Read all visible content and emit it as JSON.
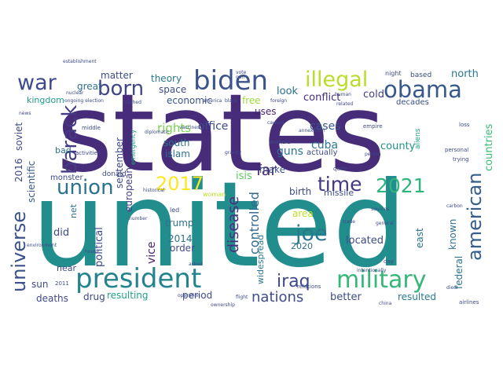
{
  "words": [
    {
      "text": "states",
      "color": "#472c7a"
    },
    {
      "text": "united",
      "color": "#218e8d"
    },
    {
      "text": "president",
      "color": "#25838e"
    },
    {
      "text": "military",
      "color": "#35b779"
    },
    {
      "text": "biden",
      "color": "#3b528b"
    },
    {
      "text": "illegal",
      "color": "#b8de29"
    },
    {
      "text": "obama",
      "color": "#38588c"
    },
    {
      "text": "war",
      "color": "#3e4a89"
    },
    {
      "text": "born",
      "color": "#404688"
    },
    {
      "text": "barack",
      "color": "#443b84"
    },
    {
      "text": "union",
      "color": "#2c728e"
    },
    {
      "text": "2017",
      "color": "#fde725"
    },
    {
      "text": "time",
      "color": "#453781"
    },
    {
      "text": "2021",
      "color": "#2fb47c"
    },
    {
      "text": "american",
      "color": "#355e8d"
    },
    {
      "text": "universe",
      "color": "#3b528b"
    },
    {
      "text": "joe",
      "color": "#2a788e"
    },
    {
      "text": "iraq",
      "color": "#3e4989"
    },
    {
      "text": "nations",
      "color": "#3e4c8a"
    },
    {
      "text": "far",
      "color": "#482878"
    },
    {
      "text": "disease",
      "color": "#46327e"
    },
    {
      "text": "controlled",
      "color": "#31688e"
    },
    {
      "text": "isis",
      "color": "#5ec962"
    },
    {
      "text": "rights",
      "color": "#7ad151"
    },
    {
      "text": "office",
      "color": "#3e4a89"
    },
    {
      "text": "cases",
      "color": "#39568c"
    },
    {
      "text": "cuba",
      "color": "#2a788e"
    },
    {
      "text": "guns",
      "color": "#2c738e"
    },
    {
      "text": "county",
      "color": "#21918c"
    },
    {
      "text": "countries",
      "color": "#3bbb75"
    },
    {
      "text": "conflict",
      "color": "#46307e"
    },
    {
      "text": "cold",
      "color": "#433e85"
    },
    {
      "text": "north",
      "color": "#297a8e"
    },
    {
      "text": "decades",
      "color": "#3b528b"
    },
    {
      "text": "based",
      "color": "#3e4a89"
    },
    {
      "text": "look",
      "color": "#2d708e"
    },
    {
      "text": "uses",
      "color": "#482173"
    },
    {
      "text": "free",
      "color": "#a0da39"
    },
    {
      "text": "economic",
      "color": "#3a548c"
    },
    {
      "text": "theory",
      "color": "#2a788e"
    },
    {
      "text": "space",
      "color": "#3e4a89"
    },
    {
      "text": "great",
      "color": "#2c728e"
    },
    {
      "text": "matter",
      "color": "#3e4a89"
    },
    {
      "text": "kingdom",
      "color": "#1f9e89"
    },
    {
      "text": "south",
      "color": "#2c728e"
    },
    {
      "text": "islam",
      "color": "#2c728e"
    },
    {
      "text": "september",
      "color": "#3e4a89"
    },
    {
      "text": "european",
      "color": "#433e85"
    },
    {
      "text": "scientific",
      "color": "#38598c"
    },
    {
      "text": "2016",
      "color": "#3e4989"
    },
    {
      "text": "soviet",
      "color": "#3e4989"
    },
    {
      "text": "bad",
      "color": "#2d708e"
    },
    {
      "text": "make",
      "color": "#3b528b"
    },
    {
      "text": "birth",
      "color": "#3e4a89"
    },
    {
      "text": "missile",
      "color": "#3e4c8a"
    },
    {
      "text": "vice",
      "color": "#482475"
    },
    {
      "text": "trump",
      "color": "#2c728e"
    },
    {
      "text": "2014",
      "color": "#2c728e"
    },
    {
      "text": "order",
      "color": "#3e4989"
    },
    {
      "text": "political",
      "color": "#3e4989"
    },
    {
      "text": "did",
      "color": "#3e4a89"
    },
    {
      "text": "near",
      "color": "#3e4a89"
    },
    {
      "text": "net",
      "color": "#2c728e"
    },
    {
      "text": "sun",
      "color": "#3e4a89"
    },
    {
      "text": "deaths",
      "color": "#3e4a89"
    },
    {
      "text": "drug",
      "color": "#3e4a89"
    },
    {
      "text": "resulting",
      "color": "#20a386"
    },
    {
      "text": "period",
      "color": "#3e4a89"
    },
    {
      "text": "better",
      "color": "#3e4a89"
    },
    {
      "text": "resulted",
      "color": "#2a788e"
    },
    {
      "text": "located",
      "color": "#3e4a89"
    },
    {
      "text": "widespread",
      "color": "#2a788e"
    },
    {
      "text": "area",
      "color": "#bddf26"
    },
    {
      "text": "2020",
      "color": "#2c728e"
    },
    {
      "text": "east",
      "color": "#2c728e"
    },
    {
      "text": "known",
      "color": "#2c728e"
    },
    {
      "text": "federal",
      "color": "#2c728e"
    },
    {
      "text": "led",
      "color": "#3e4a89"
    },
    {
      "text": "monster",
      "color": "#3e4a89"
    },
    {
      "text": "donald",
      "color": "#3e4a89"
    },
    {
      "text": "actually",
      "color": "#3e4a89"
    },
    {
      "text": "aliens",
      "color": "#20a386"
    },
    {
      "text": "woman",
      "color": "#bddf26"
    },
    {
      "text": "relations",
      "color": "#3e4a89"
    },
    {
      "text": "2011",
      "color": "#3e4a89"
    },
    {
      "text": "workers",
      "color": "#3e4a89"
    },
    {
      "text": "emergency",
      "color": "#20a386"
    },
    {
      "text": "middle",
      "color": "#3e4a89"
    },
    {
      "text": "activities",
      "color": "#3e4a89"
    },
    {
      "text": "empire",
      "color": "#3e4a89"
    },
    {
      "text": "personal",
      "color": "#3e4a89"
    },
    {
      "text": "trying",
      "color": "#3e4a89"
    },
    {
      "text": "quite",
      "color": "#3e4a89"
    },
    {
      "text": "loss",
      "color": "#3e4a89"
    },
    {
      "text": "night",
      "color": "#3e4a89"
    },
    {
      "text": "establishment",
      "color": "#3e4a89"
    },
    {
      "text": "nuclear",
      "color": "#3e4a89"
    },
    {
      "text": "ongoing election",
      "color": "#3e4a89"
    },
    {
      "text": "crashed",
      "color": "#3e4a89"
    },
    {
      "text": "black",
      "color": "#3e4a89"
    },
    {
      "text": "foreign",
      "color": "#3e4a89"
    },
    {
      "text": "gravity",
      "color": "#3e4a89"
    },
    {
      "text": "person",
      "color": "#3e4a89"
    },
    {
      "text": "caused",
      "color": "#3e4a89"
    },
    {
      "text": "vaccines",
      "color": "#3e4a89"
    },
    {
      "text": "intentionally",
      "color": "#3e4a89"
    },
    {
      "text": "flight",
      "color": "#3e4a89"
    },
    {
      "text": "airlines",
      "color": "#3e4a89"
    },
    {
      "text": "ownership",
      "color": "#3e4a89"
    },
    {
      "text": "historical",
      "color": "#3e4a89"
    },
    {
      "text": "diplomatic",
      "color": "#3e4a89"
    },
    {
      "text": "environment",
      "color": "#3e4a89"
    },
    {
      "text": "trade",
      "color": "#3e4a89"
    },
    {
      "text": "sources",
      "color": "#3e4a89"
    },
    {
      "text": "carbon",
      "color": "#3e4a89"
    },
    {
      "text": "day",
      "color": "#3e4a89"
    },
    {
      "text": "general",
      "color": "#3e4a89"
    },
    {
      "text": "human",
      "color": "#3e4a89"
    },
    {
      "text": "related",
      "color": "#3e4a89"
    },
    {
      "text": "died",
      "color": "#3e4a89"
    },
    {
      "text": "china",
      "color": "#3e4a89"
    },
    {
      "text": "annexation",
      "color": "#3e4a89"
    },
    {
      "text": "operation",
      "color": "#3e4a89"
    },
    {
      "text": "asked",
      "color": "#3e4a89"
    },
    {
      "text": "number",
      "color": "#3e4a89"
    },
    {
      "text": "vote",
      "color": "#3e4a89"
    },
    {
      "text": "news",
      "color": "#3e4a89"
    },
    {
      "text": "gun",
      "color": "#3e4a89"
    },
    {
      "text": "house",
      "color": "#3e4a89"
    },
    {
      "text": "america",
      "color": "#3e4a89"
    }
  ]
}
